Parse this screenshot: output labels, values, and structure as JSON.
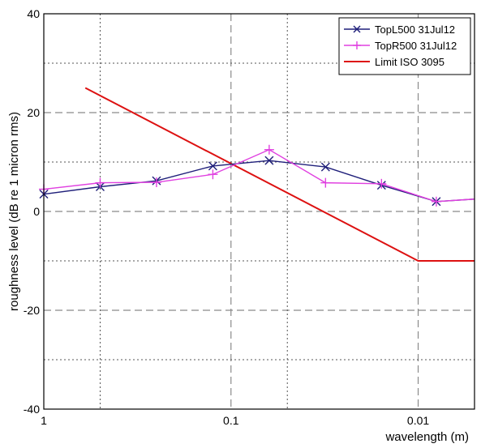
{
  "chart_data": {
    "type": "line",
    "xscale": "log",
    "xreversed": true,
    "xlim": [
      1,
      0.005
    ],
    "ylim": [
      -40,
      40
    ],
    "xticks": [
      {
        "value": 1,
        "label": "1"
      },
      {
        "value": 0.1,
        "label": "0.1"
      },
      {
        "value": 0.01,
        "label": "0.01"
      }
    ],
    "yticks": [
      {
        "value": 40,
        "label": "40"
      },
      {
        "value": 20,
        "label": "20"
      },
      {
        "value": 0,
        "label": "0"
      },
      {
        "value": -20,
        "label": "-20"
      },
      {
        "value": -40,
        "label": "-40"
      }
    ],
    "x_minor_gridlines": [
      0.5,
      0.05,
      0.005
    ],
    "y_minor_gridlines": [
      30,
      10,
      -10,
      -30
    ],
    "xlabel": "wavelength (m)",
    "ylabel": "roughness level (dB re 1 micron rms)",
    "grid": true,
    "legend": "top-right",
    "series": [
      {
        "name": "TopL500 31Jul12",
        "color": "#1f1f7a",
        "marker": "x",
        "x": [
          1,
          0.5,
          0.25,
          0.125,
          0.0625,
          0.03125,
          0.0157,
          0.008,
          0.005
        ],
        "y": [
          3.5,
          5.0,
          6.2,
          9.2,
          10.3,
          9.0,
          5.3,
          2.0,
          2.5
        ],
        "marker_indices": [
          0,
          1,
          2,
          3,
          4,
          5,
          6,
          7
        ]
      },
      {
        "name": "TopR500 31Jul12",
        "color": "#e040e0",
        "marker": "+",
        "x": [
          1,
          0.5,
          0.25,
          0.125,
          0.0625,
          0.03125,
          0.0157,
          0.008,
          0.005
        ],
        "y": [
          4.5,
          5.8,
          5.9,
          7.5,
          12.5,
          5.8,
          5.6,
          2.0,
          2.5
        ],
        "marker_indices": [
          0,
          1,
          2,
          3,
          4,
          5,
          6,
          7
        ]
      },
      {
        "name": "Limit ISO 3095",
        "color": "#dd1111",
        "marker": "none",
        "x": [
          0.6,
          0.01,
          0.005
        ],
        "y": [
          25,
          -10,
          -10
        ],
        "marker_indices": []
      }
    ]
  }
}
